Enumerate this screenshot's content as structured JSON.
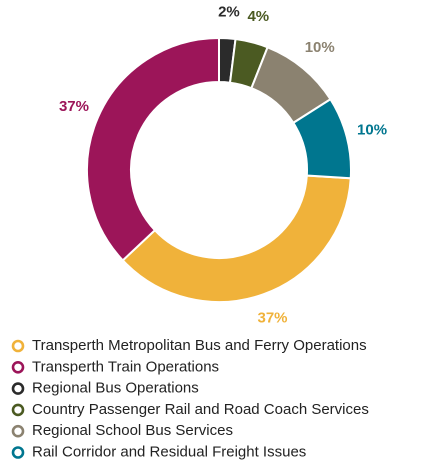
{
  "chart_data": {
    "type": "pie",
    "categories": [
      "Transperth Metropolitan Bus and Ferry Operations",
      "Transperth Train Operations",
      "Regional Bus Operations",
      "Country Passenger Rail and Road Coach Services",
      "Regional School Bus Services",
      "Rail Corridor and Residual Freight Issues"
    ],
    "values": [
      37,
      37,
      2,
      4,
      10,
      10
    ],
    "value_labels": [
      "37%",
      "37%",
      "2%",
      "4%",
      "10%",
      "10%"
    ],
    "colors": [
      "#f0b23a",
      "#9c1559",
      "#2b2b2b",
      "#4b5a22",
      "#8b8270",
      "#00768f"
    ],
    "legend": "bottom-left"
  }
}
